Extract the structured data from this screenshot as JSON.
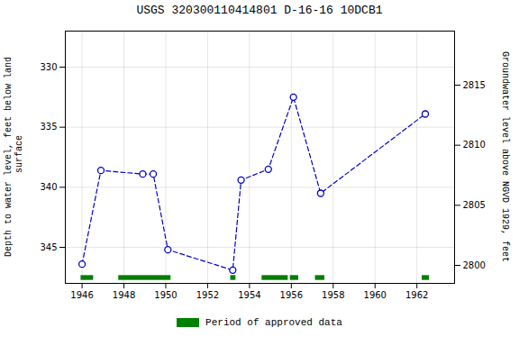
{
  "chart_data": {
    "type": "line",
    "title": "USGS 320300110414801 D-16-16 10DCB1",
    "ylabel": "Depth to water level, feet below land\n surface",
    "y2label": "Groundwater level above NGVD 1929, feet",
    "x": [
      1946.0,
      1946.9,
      1948.9,
      1949.4,
      1950.1,
      1953.2,
      1953.6,
      1954.9,
      1956.1,
      1957.4,
      1962.4
    ],
    "values": [
      346.4,
      338.6,
      338.9,
      338.9,
      345.2,
      346.9,
      339.4,
      338.5,
      332.5,
      340.5,
      333.9
    ],
    "color": "#0000cc",
    "marker": "circle",
    "line_style": "dashed",
    "approved_periods": {
      "name": "Period of approved data",
      "color": "#008000",
      "periods": [
        [
          1945.95,
          1946.55
        ],
        [
          1947.75,
          1950.25
        ],
        [
          1953.1,
          1953.35
        ],
        [
          1954.6,
          1955.85
        ],
        [
          1955.95,
          1956.35
        ],
        [
          1957.15,
          1957.6
        ],
        [
          1962.25,
          1962.6
        ]
      ],
      "y": [
        347.35,
        347.75
      ]
    },
    "xlim": [
      1945.2,
      1963.8
    ],
    "xticks": [
      1946,
      1948,
      1950,
      1952,
      1954,
      1956,
      1958,
      1960,
      1962
    ],
    "ylim": [
      348,
      327
    ],
    "yticks": [
      330,
      335,
      340,
      345
    ],
    "y2lim": [
      2798.5,
      2819.5
    ],
    "y2ticks": [
      2800,
      2805,
      2810,
      2815
    ],
    "grid": true,
    "legend": "bottom"
  }
}
